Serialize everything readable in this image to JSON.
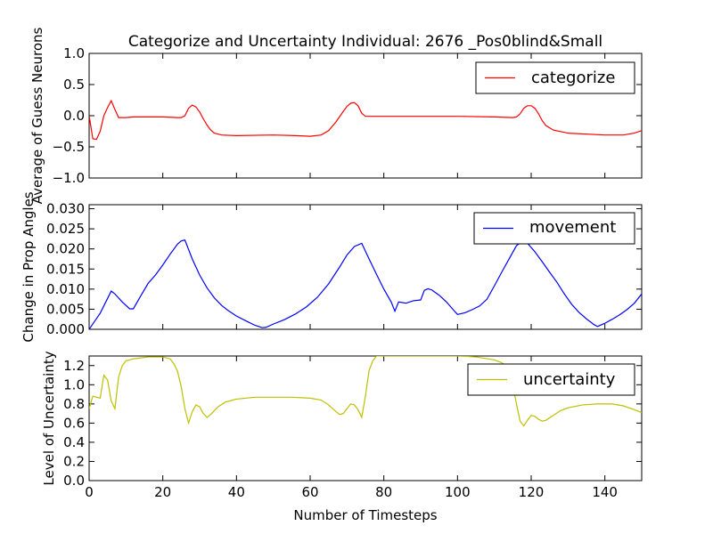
{
  "chart_data": {
    "title": "Categorize and Uncertainty Individual: 2676 _Pos0blind&Small",
    "xlabel": "Number of Timesteps",
    "xlim": [
      0,
      150
    ],
    "xticks": [
      "0",
      "20",
      "40",
      "60",
      "80",
      "100",
      "120",
      "140"
    ],
    "xtick_values": [
      0,
      20,
      40,
      60,
      80,
      100,
      120,
      140
    ],
    "subplots": [
      {
        "type": "line",
        "ylabel": "Average of Guess Neurons",
        "ylim": [
          -1.0,
          1.0
        ],
        "yticks": [
          "1.0",
          "0.5",
          "0.0",
          "−0.5",
          "−1.0"
        ],
        "ytick_values": [
          1.0,
          0.5,
          0.0,
          -0.5,
          -1.0
        ],
        "legend": "top-right",
        "series": [
          {
            "name": "categorize",
            "color": "#ff0000",
            "points": [
              [
                0,
                0
              ],
              [
                1,
                -0.37
              ],
              [
                2,
                -0.38
              ],
              [
                3,
                -0.25
              ],
              [
                4,
                0.0
              ],
              [
                5,
                0.13
              ],
              [
                6,
                0.24
              ],
              [
                7,
                0.1
              ],
              [
                8,
                -0.03
              ],
              [
                10,
                -0.03
              ],
              [
                12,
                -0.02
              ],
              [
                16,
                -0.02
              ],
              [
                20,
                -0.02
              ],
              [
                24,
                -0.03
              ],
              [
                25,
                -0.03
              ],
              [
                26,
                0.0
              ],
              [
                27,
                0.12
              ],
              [
                28,
                0.17
              ],
              [
                29,
                0.14
              ],
              [
                30,
                0.06
              ],
              [
                31,
                -0.05
              ],
              [
                32,
                -0.15
              ],
              [
                33,
                -0.23
              ],
              [
                34,
                -0.28
              ],
              [
                36,
                -0.31
              ],
              [
                40,
                -0.32
              ],
              [
                50,
                -0.31
              ],
              [
                56,
                -0.32
              ],
              [
                60,
                -0.33
              ],
              [
                63,
                -0.31
              ],
              [
                65,
                -0.24
              ],
              [
                67,
                -0.1
              ],
              [
                69,
                0.07
              ],
              [
                70,
                0.15
              ],
              [
                71,
                0.2
              ],
              [
                72,
                0.21
              ],
              [
                73,
                0.16
              ],
              [
                74,
                0.04
              ],
              [
                75,
                -0.01
              ],
              [
                80,
                -0.01
              ],
              [
                90,
                -0.01
              ],
              [
                100,
                -0.01
              ],
              [
                110,
                -0.02
              ],
              [
                115,
                -0.03
              ],
              [
                116,
                -0.02
              ],
              [
                117,
                0.03
              ],
              [
                118,
                0.12
              ],
              [
                119,
                0.16
              ],
              [
                120,
                0.16
              ],
              [
                121,
                0.12
              ],
              [
                122,
                0.03
              ],
              [
                123,
                -0.08
              ],
              [
                124,
                -0.16
              ],
              [
                126,
                -0.23
              ],
              [
                130,
                -0.28
              ],
              [
                140,
                -0.31
              ],
              [
                145,
                -0.31
              ],
              [
                148,
                -0.28
              ],
              [
                150,
                -0.24
              ]
            ]
          }
        ]
      },
      {
        "type": "line",
        "ylabel": "Change in Prop Angles",
        "ylim": [
          0.0,
          0.031
        ],
        "yticks": [
          "0.030",
          "0.025",
          "0.020",
          "0.015",
          "0.010",
          "0.005",
          "0.000"
        ],
        "ytick_values": [
          0.03,
          0.025,
          0.02,
          0.015,
          0.01,
          0.005,
          0.0
        ],
        "legend": "top-right",
        "series": [
          {
            "name": "movement",
            "color": "#0000ff",
            "points": [
              [
                0,
                0.0
              ],
              [
                3,
                0.004
              ],
              [
                6,
                0.0095
              ],
              [
                7,
                0.0088
              ],
              [
                9,
                0.0068
              ],
              [
                11,
                0.0051
              ],
              [
                12,
                0.0051
              ],
              [
                14,
                0.0083
              ],
              [
                16,
                0.0114
              ],
              [
                18,
                0.0135
              ],
              [
                20,
                0.016
              ],
              [
                22,
                0.0187
              ],
              [
                24,
                0.0212
              ],
              [
                25,
                0.022
              ],
              [
                26,
                0.0222
              ],
              [
                28,
                0.0175
              ],
              [
                30,
                0.0135
              ],
              [
                32,
                0.0103
              ],
              [
                34,
                0.0078
              ],
              [
                36,
                0.0059
              ],
              [
                38,
                0.0045
              ],
              [
                40,
                0.0033
              ],
              [
                43,
                0.0019
              ],
              [
                45,
                0.001
              ],
              [
                47,
                0.0004
              ],
              [
                48,
                0.0005
              ],
              [
                50,
                0.0013
              ],
              [
                53,
                0.0024
              ],
              [
                56,
                0.0038
              ],
              [
                59,
                0.0056
              ],
              [
                62,
                0.008
              ],
              [
                65,
                0.0113
              ],
              [
                68,
                0.0155
              ],
              [
                70,
                0.0185
              ],
              [
                72,
                0.0206
              ],
              [
                74,
                0.0214
              ],
              [
                76,
                0.0175
              ],
              [
                78,
                0.0137
              ],
              [
                80,
                0.01
              ],
              [
                82,
                0.0068
              ],
              [
                83,
                0.0045
              ],
              [
                84,
                0.0068
              ],
              [
                86,
                0.0065
              ],
              [
                88,
                0.0071
              ],
              [
                90,
                0.0073
              ],
              [
                91,
                0.0097
              ],
              [
                92,
                0.0101
              ],
              [
                93,
                0.0098
              ],
              [
                95,
                0.0085
              ],
              [
                97,
                0.0068
              ],
              [
                99,
                0.0047
              ],
              [
                100,
                0.0037
              ],
              [
                102,
                0.0041
              ],
              [
                104,
                0.0049
              ],
              [
                106,
                0.0058
              ],
              [
                108,
                0.0075
              ],
              [
                110,
                0.0108
              ],
              [
                112,
                0.0142
              ],
              [
                114,
                0.0175
              ],
              [
                116,
                0.0208
              ],
              [
                118,
                0.0221
              ],
              [
                119,
                0.0214
              ],
              [
                121,
                0.0193
              ],
              [
                123,
                0.0168
              ],
              [
                125,
                0.0142
              ],
              [
                127,
                0.0117
              ],
              [
                129,
                0.0088
              ],
              [
                131,
                0.0062
              ],
              [
                133,
                0.0042
              ],
              [
                135,
                0.0026
              ],
              [
                137,
                0.0012
              ],
              [
                138,
                0.0007
              ],
              [
                140,
                0.0015
              ],
              [
                142,
                0.0025
              ],
              [
                144,
                0.0036
              ],
              [
                146,
                0.0049
              ],
              [
                148,
                0.0065
              ],
              [
                150,
                0.0088
              ]
            ]
          }
        ]
      },
      {
        "type": "line",
        "ylabel": "Level of Uncertainty",
        "ylim": [
          0.0,
          1.3
        ],
        "yticks": [
          "1.2",
          "1.0",
          "0.8",
          "0.6",
          "0.4",
          "0.2",
          "0.0"
        ],
        "ytick_values": [
          1.2,
          1.0,
          0.8,
          0.6,
          0.4,
          0.2,
          0.0
        ],
        "legend": "top-right",
        "series": [
          {
            "name": "uncertainty",
            "color": "#bfbf00",
            "points": [
              [
                0,
                0.75
              ],
              [
                1,
                0.88
              ],
              [
                2,
                0.87
              ],
              [
                3,
                0.86
              ],
              [
                4,
                1.1
              ],
              [
                5,
                1.05
              ],
              [
                6,
                0.83
              ],
              [
                7,
                0.75
              ],
              [
                8,
                1.08
              ],
              [
                9,
                1.2
              ],
              [
                10,
                1.25
              ],
              [
                12,
                1.27
              ],
              [
                14,
                1.28
              ],
              [
                16,
                1.29
              ],
              [
                20,
                1.29
              ],
              [
                22,
                1.27
              ],
              [
                23,
                1.22
              ],
              [
                24,
                1.14
              ],
              [
                25,
                0.98
              ],
              [
                26,
                0.75
              ],
              [
                27,
                0.6
              ],
              [
                28,
                0.72
              ],
              [
                29,
                0.79
              ],
              [
                30,
                0.77
              ],
              [
                31,
                0.7
              ],
              [
                32,
                0.66
              ],
              [
                33,
                0.69
              ],
              [
                35,
                0.77
              ],
              [
                37,
                0.82
              ],
              [
                40,
                0.85
              ],
              [
                45,
                0.87
              ],
              [
                50,
                0.87
              ],
              [
                55,
                0.87
              ],
              [
                60,
                0.86
              ],
              [
                63,
                0.84
              ],
              [
                65,
                0.79
              ],
              [
                67,
                0.72
              ],
              [
                68,
                0.69
              ],
              [
                69,
                0.7
              ],
              [
                70,
                0.75
              ],
              [
                71,
                0.8
              ],
              [
                72,
                0.79
              ],
              [
                73,
                0.74
              ],
              [
                74,
                0.66
              ],
              [
                75,
                0.88
              ],
              [
                76,
                1.15
              ],
              [
                77,
                1.25
              ],
              [
                78,
                1.3
              ],
              [
                79,
                1.3
              ],
              [
                80,
                1.3
              ],
              [
                100,
                1.3
              ],
              [
                105,
                1.29
              ],
              [
                110,
                1.26
              ],
              [
                112,
                1.23
              ],
              [
                113,
                1.2
              ],
              [
                115,
                1.0
              ],
              [
                116,
                0.8
              ],
              [
                117,
                0.62
              ],
              [
                118,
                0.57
              ],
              [
                119,
                0.63
              ],
              [
                120,
                0.68
              ],
              [
                121,
                0.67
              ],
              [
                122,
                0.64
              ],
              [
                123,
                0.62
              ],
              [
                124,
                0.63
              ],
              [
                126,
                0.68
              ],
              [
                128,
                0.73
              ],
              [
                130,
                0.76
              ],
              [
                134,
                0.79
              ],
              [
                138,
                0.8
              ],
              [
                142,
                0.8
              ],
              [
                145,
                0.78
              ],
              [
                148,
                0.74
              ],
              [
                150,
                0.71
              ]
            ]
          }
        ]
      }
    ]
  }
}
